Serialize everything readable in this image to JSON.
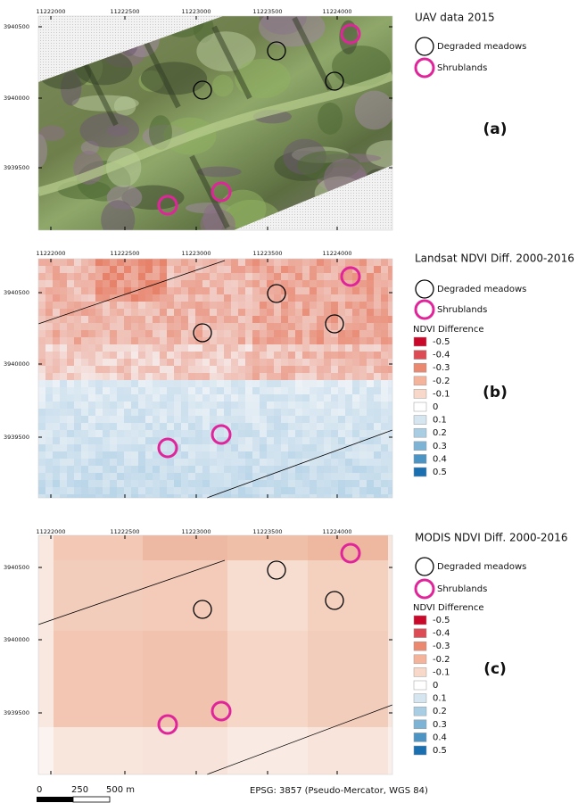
{
  "panels": [
    {
      "title": "UAV data 2015",
      "label": "(a)",
      "x_ticks": [
        "11222000",
        "11222500",
        "11223000",
        "11223500",
        "11224000"
      ],
      "y_ticks": [
        "3940500",
        "3940000",
        "3939500"
      ],
      "legend": {
        "items": [
          "Degraded meadows",
          "Shrublands"
        ]
      }
    },
    {
      "title": "Landsat NDVI Diff. 2000-2016",
      "label": "(b)",
      "x_ticks": [
        "11222000",
        "11222500",
        "11223000",
        "11223500",
        "11224000"
      ],
      "y_ticks": [
        "3940500",
        "3940000",
        "3939500"
      ],
      "legend": {
        "items": [
          "Degraded meadows",
          "Shrublands"
        ],
        "scale_title": "NDVI Difference",
        "classes": [
          {
            "label": "-0.5",
            "color": "#c9082a"
          },
          {
            "label": "-0.4",
            "color": "#dd4c54"
          },
          {
            "label": "-0.3",
            "color": "#ea8870"
          },
          {
            "label": "-0.2",
            "color": "#f4b39b"
          },
          {
            "label": "-0.1",
            "color": "#f8d8c8"
          },
          {
            "label": "0",
            "color": "#ffffff"
          },
          {
            "label": "0.1",
            "color": "#d6e6f0"
          },
          {
            "label": "0.2",
            "color": "#a9cde3"
          },
          {
            "label": "0.3",
            "color": "#7db4d6"
          },
          {
            "label": "0.4",
            "color": "#4c94c4"
          },
          {
            "label": "0.5",
            "color": "#1a6fb0"
          }
        ]
      }
    },
    {
      "title": "MODIS NDVI Diff. 2000-2016",
      "label": "(c)",
      "x_ticks": [
        "11222000",
        "11222500",
        "11223000",
        "11223500",
        "11224000"
      ],
      "y_ticks": [
        "3940500",
        "3940000",
        "3939500"
      ],
      "legend": {
        "items": [
          "Degraded meadows",
          "Shrublands"
        ],
        "scale_title": "NDVI Difference",
        "classes": [
          {
            "label": "-0.5",
            "color": "#c9082a"
          },
          {
            "label": "-0.4",
            "color": "#dd4c54"
          },
          {
            "label": "-0.3",
            "color": "#ea8870"
          },
          {
            "label": "-0.2",
            "color": "#f4b39b"
          },
          {
            "label": "-0.1",
            "color": "#f8d8c8"
          },
          {
            "label": "0",
            "color": "#ffffff"
          },
          {
            "label": "0.1",
            "color": "#d6e6f0"
          },
          {
            "label": "0.2",
            "color": "#a9cde3"
          },
          {
            "label": "0.3",
            "color": "#7db4d6"
          },
          {
            "label": "0.4",
            "color": "#4c94c4"
          },
          {
            "label": "0.5",
            "color": "#1a6fb0"
          }
        ]
      }
    }
  ],
  "scale_bar": {
    "labels": [
      "0",
      "250",
      "500 m"
    ]
  },
  "crs": "EPSG: 3857 (Pseudo-Mercator, WGS 84)"
}
